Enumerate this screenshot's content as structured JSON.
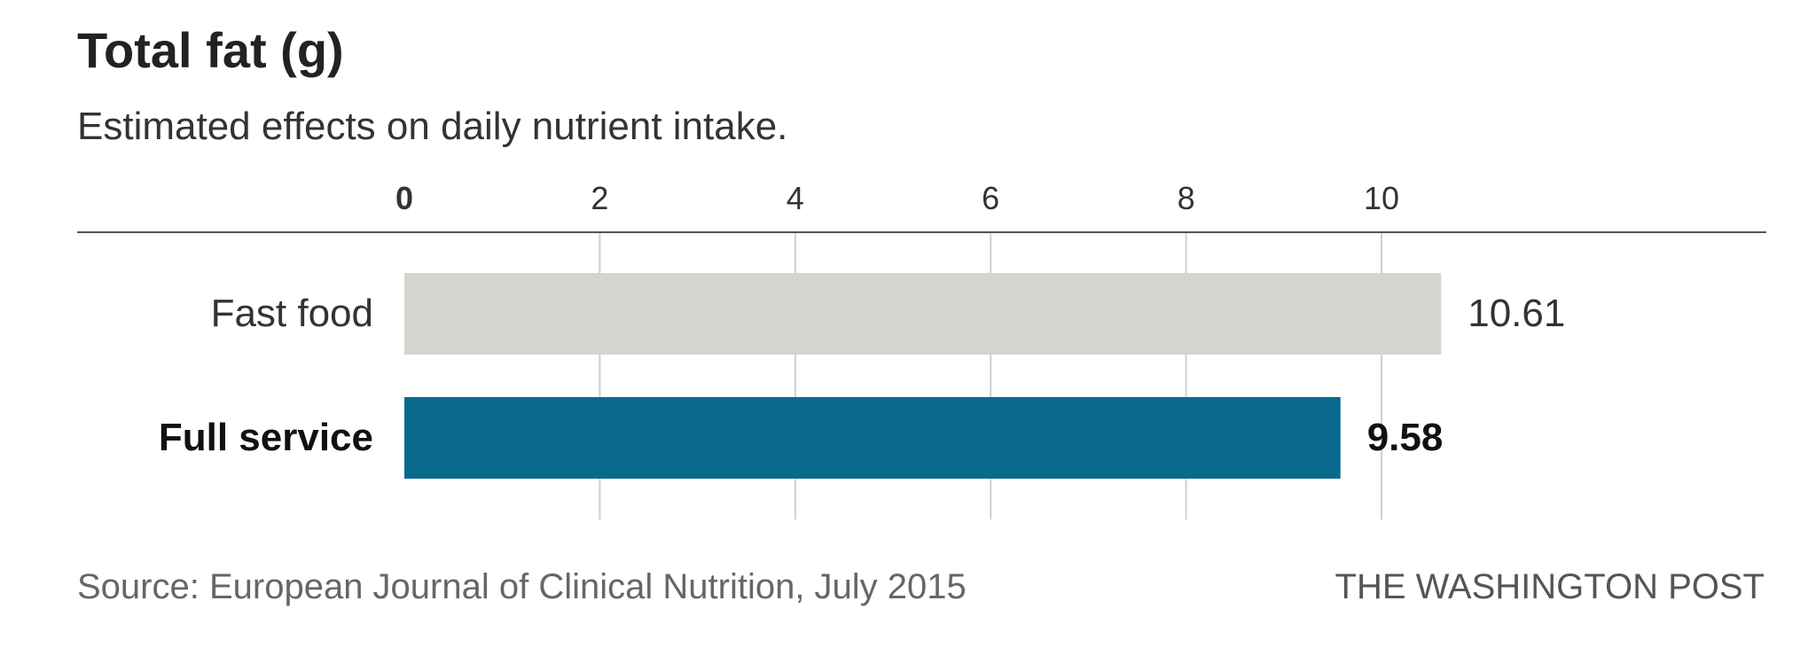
{
  "title": "Total fat (g)",
  "subtitle": "Estimated effects on daily nutrient intake.",
  "source": "Source: European Journal of Clinical Nutrition, July 2015",
  "credit": "THE WASHINGTON POST",
  "chart_data": {
    "type": "bar",
    "orientation": "horizontal",
    "title": "Total fat (g)",
    "subtitle": "Estimated effects on daily nutrient intake.",
    "categories": [
      "Fast food",
      "Full service"
    ],
    "values": [
      10.61,
      9.58
    ],
    "value_labels": [
      "10.61",
      "9.58"
    ],
    "highlight": [
      false,
      true
    ],
    "colors": [
      "#d4d4d0",
      "#0a6a8e"
    ],
    "xlim": [
      0,
      10.61
    ],
    "xticks": [
      0,
      2,
      4,
      6,
      8,
      10
    ],
    "xtick_labels": [
      "0",
      "2",
      "4",
      "6",
      "8",
      "10"
    ],
    "xaxis_position": "top",
    "grid": true
  }
}
